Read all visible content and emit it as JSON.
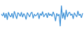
{
  "chart_data": {
    "type": "line",
    "color": "#3a8fd6",
    "tick_labels": false,
    "grid": false,
    "ylim": [
      0,
      100
    ],
    "values": [
      55,
      48,
      60,
      42,
      58,
      35,
      62,
      50,
      45,
      58,
      40,
      65,
      52,
      38,
      60,
      55,
      47,
      62,
      44,
      57,
      50,
      36,
      60,
      53,
      45,
      58,
      62,
      40,
      55,
      48,
      52,
      60,
      38,
      57,
      50,
      64,
      45,
      52,
      58,
      42,
      60,
      50,
      55,
      47,
      63,
      52,
      30,
      58,
      48,
      55,
      12,
      85,
      40,
      60,
      35,
      70,
      45,
      58,
      62,
      50,
      56,
      38,
      60,
      52,
      45,
      66,
      50,
      55,
      42,
      58
    ]
  }
}
